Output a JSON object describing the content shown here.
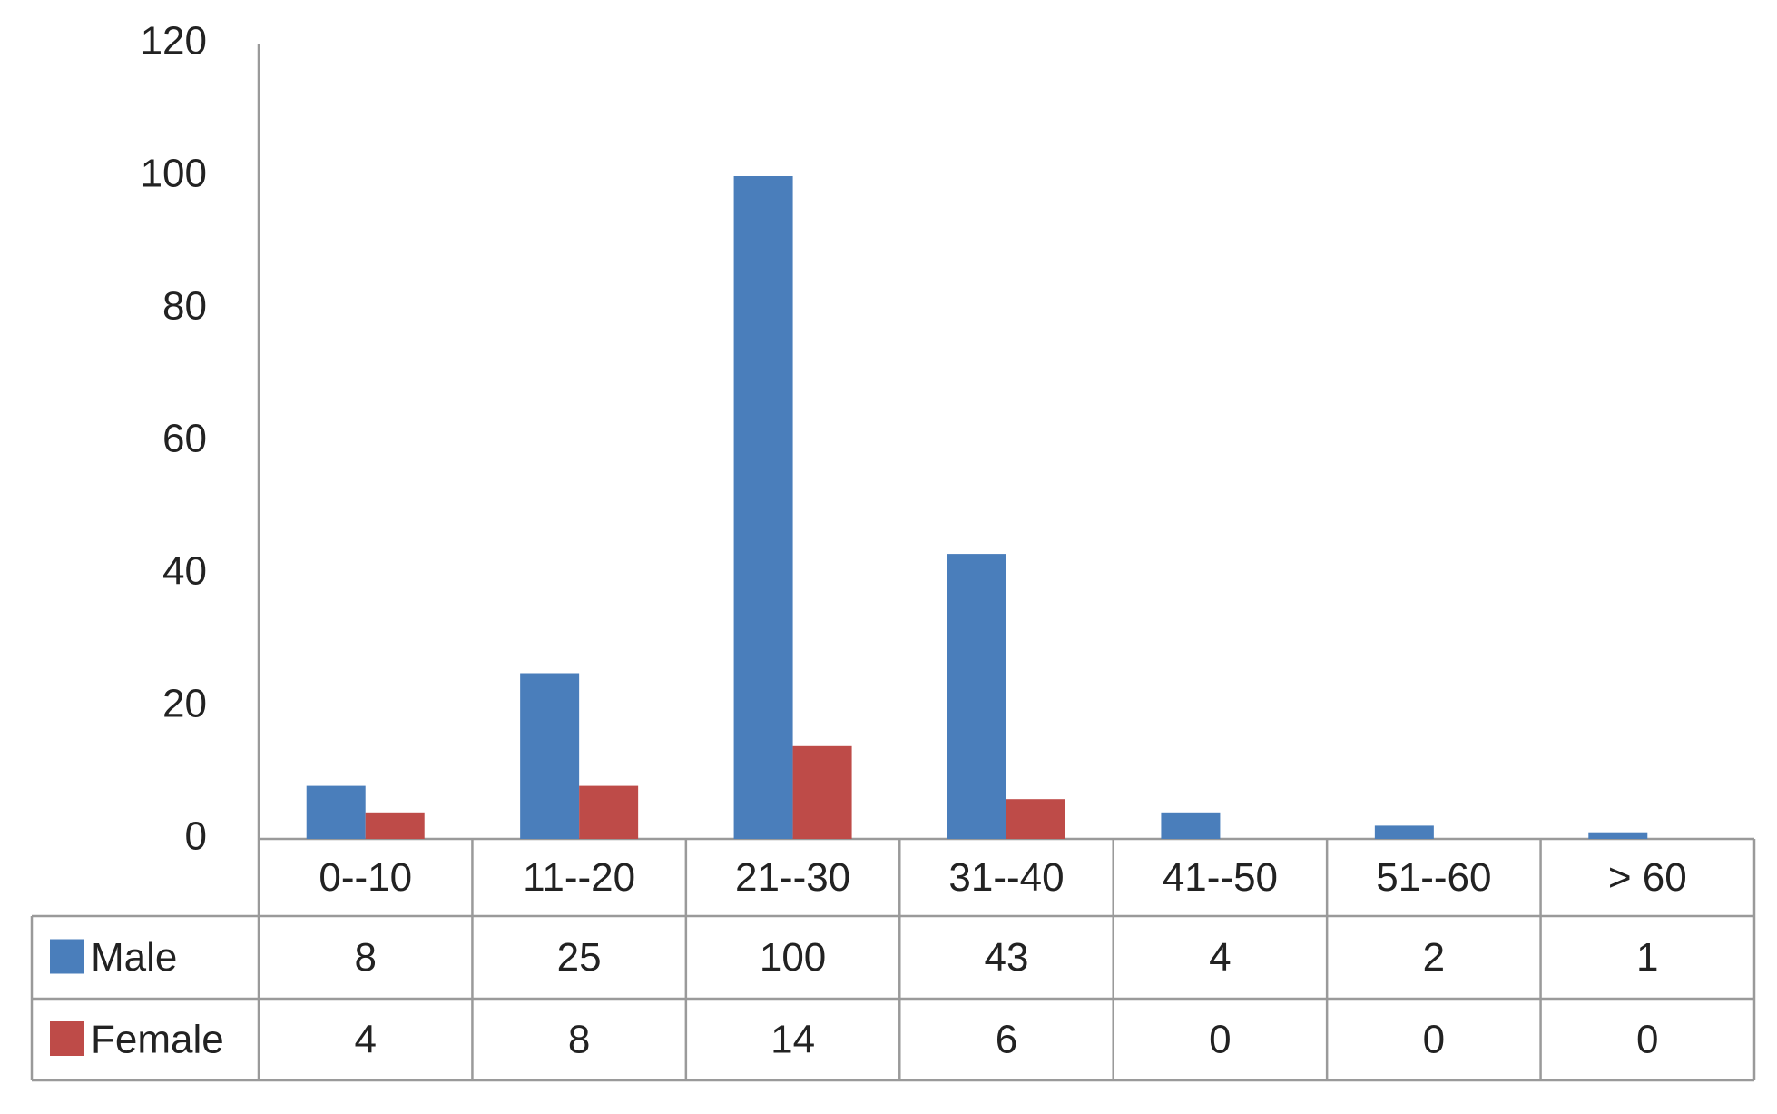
{
  "chart_data": {
    "type": "bar",
    "categories": [
      "0--10",
      "11--20",
      "21--30",
      "31--40",
      "41--50",
      "51--60",
      "> 60"
    ],
    "series": [
      {
        "name": "Male",
        "color": "#4a7ebb",
        "values": [
          8,
          25,
          100,
          43,
          4,
          2,
          1
        ]
      },
      {
        "name": "Female",
        "color": "#be4b48",
        "values": [
          4,
          8,
          14,
          6,
          0,
          0,
          0
        ]
      }
    ],
    "ylim": [
      0,
      120
    ],
    "yticks": [
      0,
      20,
      40,
      60,
      80,
      100,
      120
    ],
    "grid": false
  }
}
